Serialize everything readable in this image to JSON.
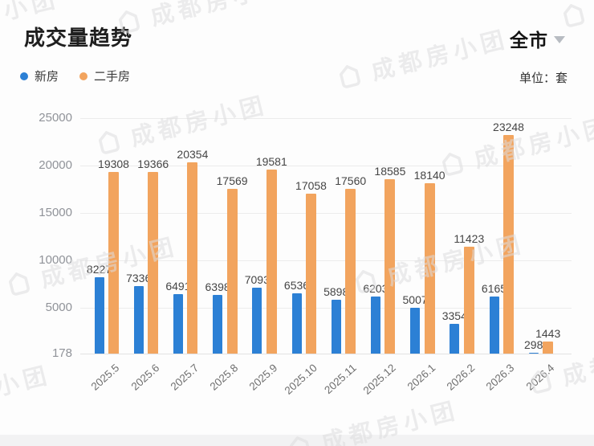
{
  "header": {
    "title": "成交量趋势",
    "region": "全市",
    "unit_label": "单位：套"
  },
  "legend": [
    {
      "label": "新房",
      "color": "#2c80d5"
    },
    {
      "label": "二手房",
      "color": "#f2a45e"
    }
  ],
  "watermark": {
    "text": "成都房小团"
  },
  "colors": {
    "new_home": "#2c80d5",
    "second_hand": "#f2a45e",
    "gridline": "#ececec",
    "baseline": "#e2e2e2"
  },
  "chart_data": {
    "type": "bar",
    "title": "成交量趋势",
    "unit": "套",
    "categories": [
      "2025.5",
      "2025.6",
      "2025.7",
      "2025.8",
      "2025.9",
      "2025.10",
      "2025.11",
      "2025.12",
      "2026.1",
      "2026.2",
      "2026.3",
      "2026.4"
    ],
    "series": [
      {
        "name": "新房",
        "color": "#2c80d5",
        "values": [
          8227,
          7336,
          6491,
          6398,
          7093,
          6536,
          5898,
          6203,
          5007,
          3354,
          6165,
          298
        ]
      },
      {
        "name": "二手房",
        "color": "#f2a45e",
        "values": [
          19308,
          19366,
          20354,
          17569,
          19581,
          17058,
          17560,
          18585,
          18140,
          11423,
          23248,
          1443
        ]
      }
    ],
    "y_ticks": [
      178,
      5000,
      10000,
      15000,
      20000,
      25000
    ],
    "ylim": [
      178,
      26450
    ],
    "grid": true,
    "legend_position": "top-left",
    "value_labels": true
  }
}
